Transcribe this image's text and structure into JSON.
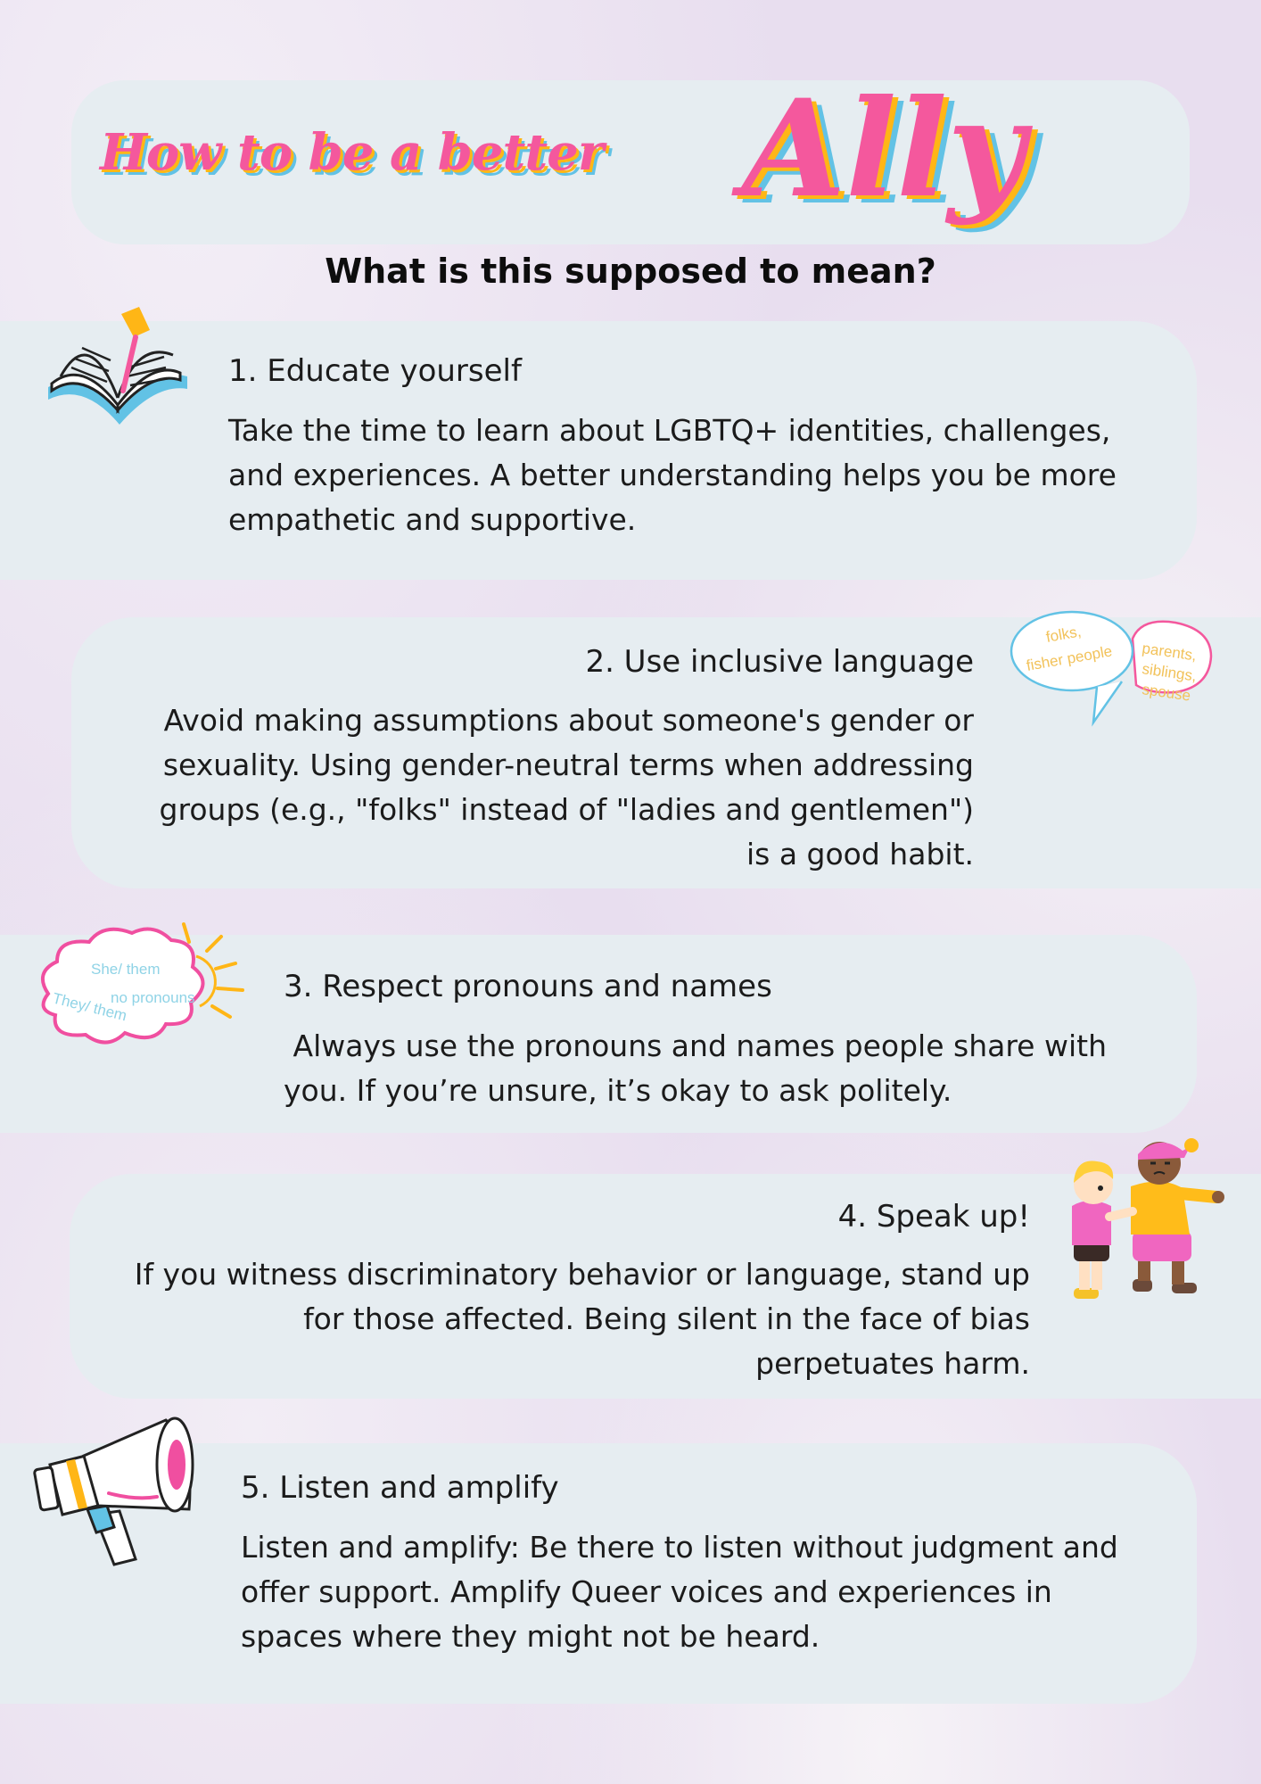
{
  "header": {
    "title_prefix": "How to be a better",
    "title_main": "Ally",
    "subtitle": "What is this supposed to mean?"
  },
  "sections": [
    {
      "heading": "1. Educate yourself",
      "body": "Take the time to learn about LGBTQ+ identities, challenges, and experiences. A better understanding helps you be more empathetic and supportive.",
      "icon": "open-book-icon"
    },
    {
      "heading": "2. Use inclusive language",
      "body": "Avoid making assumptions about someone's gender or sexuality. Using gender-neutral terms when addressing groups (e.g., \"folks\" instead of \"ladies and gentlemen\") is a good habit.",
      "icon": "speech-bubbles-icon",
      "bubble_left": [
        "folks,",
        "fisher people"
      ],
      "bubble_right": [
        "parents,",
        "siblings,",
        "spouse"
      ]
    },
    {
      "heading": "3. Respect pronouns and names",
      "body": " Always use the pronouns and names people share with you. If you’re unsure, it’s okay to ask politely.",
      "icon": "pronoun-cloud-icon",
      "cloud_words": [
        "She/ them",
        "no pronouns",
        "They/ them"
      ]
    },
    {
      "heading": "4. Speak up!",
      "body": "If you witness discriminatory behavior or language, stand up for those affected. Being silent in the face of bias perpetuates harm.",
      "icon": "children-standing-up-icon"
    },
    {
      "heading": "5. Listen and amplify",
      "body": "Listen and amplify: Be there to listen without judgment and offer support. Amplify Queer voices and experiences in spaces where they might not be heard.",
      "icon": "megaphone-icon"
    }
  ],
  "colors": {
    "background": "#e8deef",
    "card": "#e6edf1",
    "pink": "#f4589d",
    "yellow": "#ffb616",
    "blue": "#62c2e5"
  }
}
